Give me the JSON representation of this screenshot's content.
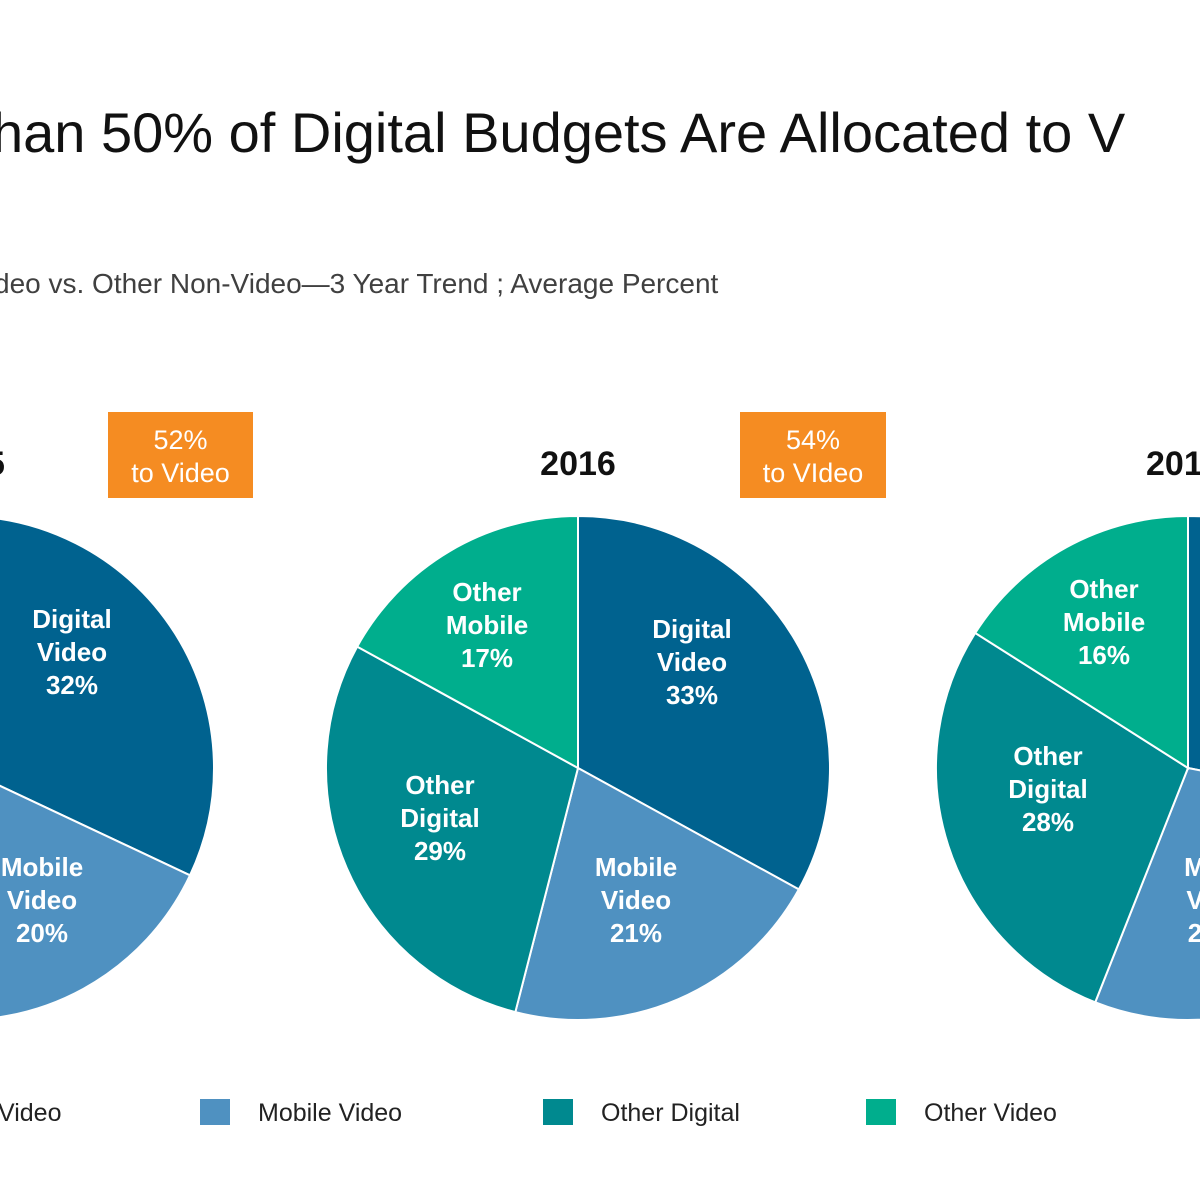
{
  "title": "han 50% of Digital Budgets Are Allocated to V",
  "subtitle": "deo vs. Other Non-Video—3 Year Trend ; Average Percent",
  "colors": {
    "digital_video": "#00628f",
    "mobile_video": "#4f91c1",
    "other_digital": "#00898f",
    "other_mobile": "#00ae8d",
    "callout_bg": "#f58c22"
  },
  "chart_data": [
    {
      "type": "pie",
      "year": "5",
      "callout": {
        "value": "52%",
        "text": "to Video"
      },
      "slices": [
        {
          "name": "Digital Video",
          "label_lines": [
            "Digital",
            "Video",
            "32%"
          ],
          "value": 32,
          "color": "#00628f"
        },
        {
          "name": "Mobile Video",
          "label_lines": [
            "Mobile",
            "Video",
            "20%"
          ],
          "value": 20,
          "color": "#4f91c1"
        }
      ]
    },
    {
      "type": "pie",
      "year": "2016",
      "callout": {
        "value": "54%",
        "text": "to VIdeo"
      },
      "slices": [
        {
          "name": "Digital Video",
          "label_lines": [
            "Digital",
            "Video",
            "33%"
          ],
          "value": 33,
          "color": "#00628f"
        },
        {
          "name": "Mobile Video",
          "label_lines": [
            "Mobile",
            "Video",
            "21%"
          ],
          "value": 21,
          "color": "#4f91c1"
        },
        {
          "name": "Other Digital",
          "label_lines": [
            "Other",
            "Digital",
            "29%"
          ],
          "value": 29,
          "color": "#00898f"
        },
        {
          "name": "Other Mobile",
          "label_lines": [
            "Other",
            "Mobile",
            "17%"
          ],
          "value": 17,
          "color": "#00ae8d"
        }
      ]
    },
    {
      "type": "pie",
      "year": "201",
      "slices": [
        {
          "name": "Other Digital",
          "label_lines": [
            "Other",
            "Digital",
            "28%"
          ],
          "value": 28,
          "color": "#00898f"
        },
        {
          "name": "Other Mobile",
          "label_lines": [
            "Other",
            "Mobile",
            "16%"
          ],
          "value": 16,
          "color": "#00ae8d"
        },
        {
          "name": "Mobile Video",
          "label_lines": [
            "M",
            "V",
            "2"
          ],
          "color": "#4f91c1"
        }
      ]
    }
  ],
  "legend": [
    {
      "label": "Video",
      "color": "#00628f"
    },
    {
      "label": "Mobile Video",
      "color": "#4f91c1"
    },
    {
      "label": "Other Digital",
      "color": "#00898f"
    },
    {
      "label": "Other Video",
      "color": "#00ae8d"
    }
  ]
}
